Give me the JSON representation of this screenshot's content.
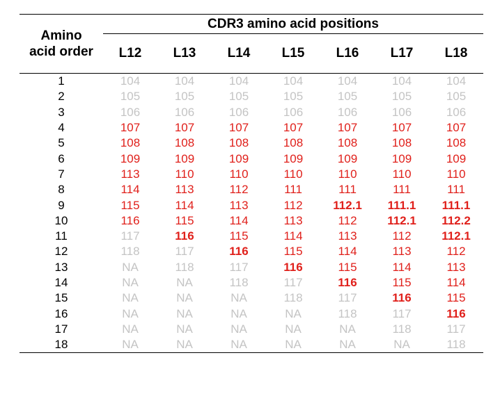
{
  "table": {
    "stub_header": "Amino acid order",
    "group_header": "CDR3 amino acid positions",
    "columns": [
      "L12",
      "L13",
      "L14",
      "L15",
      "L16",
      "L17",
      "L18"
    ],
    "rows": [
      {
        "order": "1",
        "cells": [
          {
            "v": "104",
            "s": "grey"
          },
          {
            "v": "104",
            "s": "grey"
          },
          {
            "v": "104",
            "s": "grey"
          },
          {
            "v": "104",
            "s": "grey"
          },
          {
            "v": "104",
            "s": "grey"
          },
          {
            "v": "104",
            "s": "grey"
          },
          {
            "v": "104",
            "s": "grey"
          }
        ]
      },
      {
        "order": "2",
        "cells": [
          {
            "v": "105",
            "s": "grey"
          },
          {
            "v": "105",
            "s": "grey"
          },
          {
            "v": "105",
            "s": "grey"
          },
          {
            "v": "105",
            "s": "grey"
          },
          {
            "v": "105",
            "s": "grey"
          },
          {
            "v": "105",
            "s": "grey"
          },
          {
            "v": "105",
            "s": "grey"
          }
        ]
      },
      {
        "order": "3",
        "cells": [
          {
            "v": "106",
            "s": "grey"
          },
          {
            "v": "106",
            "s": "grey"
          },
          {
            "v": "106",
            "s": "grey"
          },
          {
            "v": "106",
            "s": "grey"
          },
          {
            "v": "106",
            "s": "grey"
          },
          {
            "v": "106",
            "s": "grey"
          },
          {
            "v": "106",
            "s": "grey"
          }
        ]
      },
      {
        "order": "4",
        "cells": [
          {
            "v": "107",
            "s": "red"
          },
          {
            "v": "107",
            "s": "red"
          },
          {
            "v": "107",
            "s": "red"
          },
          {
            "v": "107",
            "s": "red"
          },
          {
            "v": "107",
            "s": "red"
          },
          {
            "v": "107",
            "s": "red"
          },
          {
            "v": "107",
            "s": "red"
          }
        ]
      },
      {
        "order": "5",
        "cells": [
          {
            "v": "108",
            "s": "red"
          },
          {
            "v": "108",
            "s": "red"
          },
          {
            "v": "108",
            "s": "red"
          },
          {
            "v": "108",
            "s": "red"
          },
          {
            "v": "108",
            "s": "red"
          },
          {
            "v": "108",
            "s": "red"
          },
          {
            "v": "108",
            "s": "red"
          }
        ]
      },
      {
        "order": "6",
        "cells": [
          {
            "v": "109",
            "s": "red"
          },
          {
            "v": "109",
            "s": "red"
          },
          {
            "v": "109",
            "s": "red"
          },
          {
            "v": "109",
            "s": "red"
          },
          {
            "v": "109",
            "s": "red"
          },
          {
            "v": "109",
            "s": "red"
          },
          {
            "v": "109",
            "s": "red"
          }
        ]
      },
      {
        "order": "7",
        "cells": [
          {
            "v": "113",
            "s": "red"
          },
          {
            "v": "110",
            "s": "red"
          },
          {
            "v": "110",
            "s": "red"
          },
          {
            "v": "110",
            "s": "red"
          },
          {
            "v": "110",
            "s": "red"
          },
          {
            "v": "110",
            "s": "red"
          },
          {
            "v": "110",
            "s": "red"
          }
        ]
      },
      {
        "order": "8",
        "cells": [
          {
            "v": "114",
            "s": "red"
          },
          {
            "v": "113",
            "s": "red"
          },
          {
            "v": "112",
            "s": "red"
          },
          {
            "v": "111",
            "s": "red"
          },
          {
            "v": "111",
            "s": "red"
          },
          {
            "v": "111",
            "s": "red"
          },
          {
            "v": "111",
            "s": "red"
          }
        ]
      },
      {
        "order": "9",
        "cells": [
          {
            "v": "115",
            "s": "red"
          },
          {
            "v": "114",
            "s": "red"
          },
          {
            "v": "113",
            "s": "red"
          },
          {
            "v": "112",
            "s": "red"
          },
          {
            "v": "112.1",
            "s": "redb"
          },
          {
            "v": "111.1",
            "s": "redb"
          },
          {
            "v": "111.1",
            "s": "redb"
          }
        ]
      },
      {
        "order": "10",
        "cells": [
          {
            "v": "116",
            "s": "red"
          },
          {
            "v": "115",
            "s": "red"
          },
          {
            "v": "114",
            "s": "red"
          },
          {
            "v": "113",
            "s": "red"
          },
          {
            "v": "112",
            "s": "red"
          },
          {
            "v": "112.1",
            "s": "redb"
          },
          {
            "v": "112.2",
            "s": "redb"
          }
        ]
      },
      {
        "order": "11",
        "cells": [
          {
            "v": "117",
            "s": "grey"
          },
          {
            "v": "116",
            "s": "redb"
          },
          {
            "v": "115",
            "s": "red"
          },
          {
            "v": "114",
            "s": "red"
          },
          {
            "v": "113",
            "s": "red"
          },
          {
            "v": "112",
            "s": "red"
          },
          {
            "v": "112.1",
            "s": "redb"
          }
        ]
      },
      {
        "order": "12",
        "cells": [
          {
            "v": "118",
            "s": "grey"
          },
          {
            "v": "117",
            "s": "grey"
          },
          {
            "v": "116",
            "s": "redb"
          },
          {
            "v": "115",
            "s": "red"
          },
          {
            "v": "114",
            "s": "red"
          },
          {
            "v": "113",
            "s": "red"
          },
          {
            "v": "112",
            "s": "red"
          }
        ]
      },
      {
        "order": "13",
        "cells": [
          {
            "v": "NA",
            "s": "grey"
          },
          {
            "v": "118",
            "s": "grey"
          },
          {
            "v": "117",
            "s": "grey"
          },
          {
            "v": "116",
            "s": "redb"
          },
          {
            "v": "115",
            "s": "red"
          },
          {
            "v": "114",
            "s": "red"
          },
          {
            "v": "113",
            "s": "red"
          }
        ]
      },
      {
        "order": "14",
        "cells": [
          {
            "v": "NA",
            "s": "grey"
          },
          {
            "v": "NA",
            "s": "grey"
          },
          {
            "v": "118",
            "s": "grey"
          },
          {
            "v": "117",
            "s": "grey"
          },
          {
            "v": "116",
            "s": "redb"
          },
          {
            "v": "115",
            "s": "red"
          },
          {
            "v": "114",
            "s": "red"
          }
        ]
      },
      {
        "order": "15",
        "cells": [
          {
            "v": "NA",
            "s": "grey"
          },
          {
            "v": "NA",
            "s": "grey"
          },
          {
            "v": "NA",
            "s": "grey"
          },
          {
            "v": "118",
            "s": "grey"
          },
          {
            "v": "117",
            "s": "grey"
          },
          {
            "v": "116",
            "s": "redb"
          },
          {
            "v": "115",
            "s": "red"
          }
        ]
      },
      {
        "order": "16",
        "cells": [
          {
            "v": "NA",
            "s": "grey"
          },
          {
            "v": "NA",
            "s": "grey"
          },
          {
            "v": "NA",
            "s": "grey"
          },
          {
            "v": "NA",
            "s": "grey"
          },
          {
            "v": "118",
            "s": "grey"
          },
          {
            "v": "117",
            "s": "grey"
          },
          {
            "v": "116",
            "s": "redb"
          }
        ]
      },
      {
        "order": "17",
        "cells": [
          {
            "v": "NA",
            "s": "grey"
          },
          {
            "v": "NA",
            "s": "grey"
          },
          {
            "v": "NA",
            "s": "grey"
          },
          {
            "v": "NA",
            "s": "grey"
          },
          {
            "v": "NA",
            "s": "grey"
          },
          {
            "v": "118",
            "s": "grey"
          },
          {
            "v": "117",
            "s": "grey"
          }
        ]
      },
      {
        "order": "18",
        "cells": [
          {
            "v": "NA",
            "s": "grey"
          },
          {
            "v": "NA",
            "s": "grey"
          },
          {
            "v": "NA",
            "s": "grey"
          },
          {
            "v": "NA",
            "s": "grey"
          },
          {
            "v": "NA",
            "s": "grey"
          },
          {
            "v": "NA",
            "s": "grey"
          },
          {
            "v": "118",
            "s": "grey"
          }
        ]
      }
    ]
  },
  "colors": {
    "grey_text": "#c4c4c4",
    "red_text": "#e0201b",
    "rule": "#000000"
  }
}
